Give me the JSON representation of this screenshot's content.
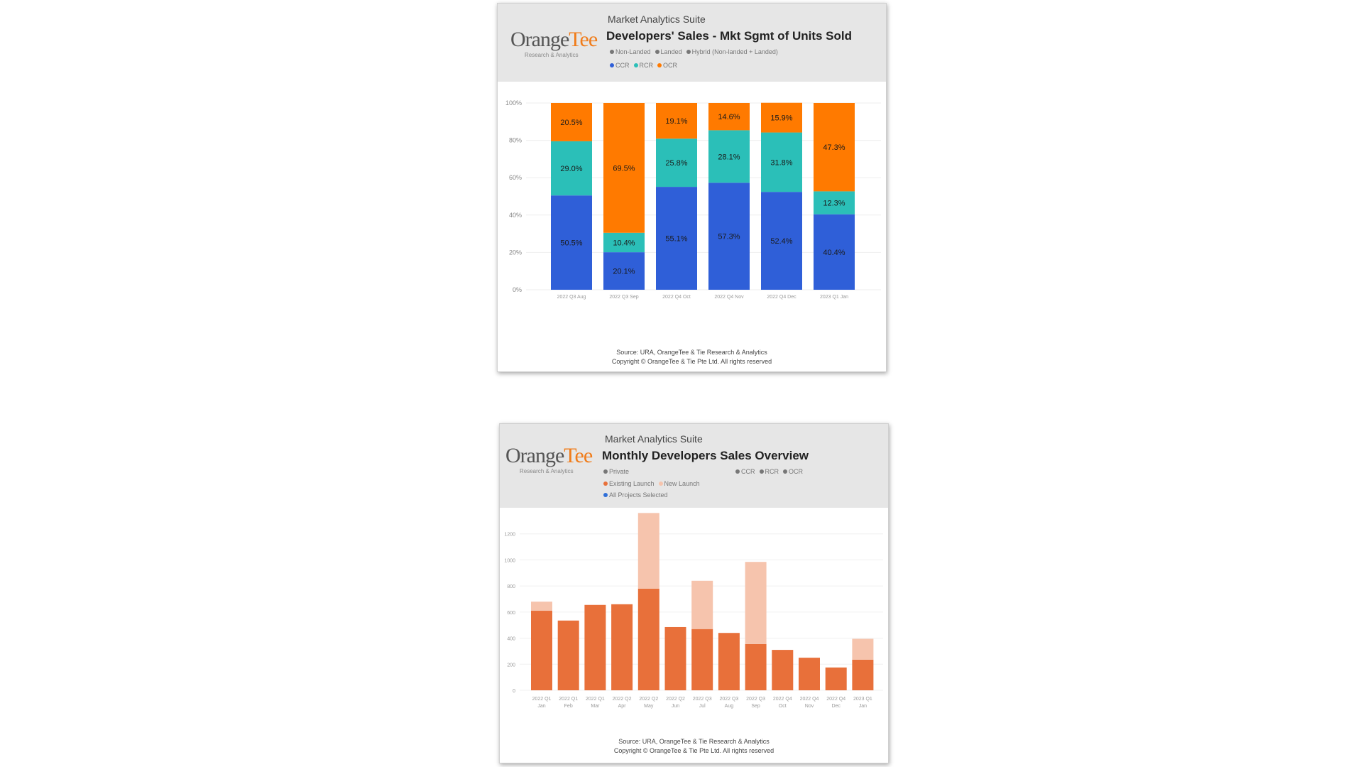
{
  "charts": [
    {
      "suite": "Market Analytics Suite",
      "title": "Developers' Sales - Mkt Sgmt of Units Sold",
      "logo": {
        "orange": "Orange",
        "tee": "Tee",
        "sub": "Research & Analytics"
      },
      "legend_rows": [
        [
          {
            "label": "Non-Landed",
            "color": "#777777"
          },
          {
            "label": "Landed",
            "color": "#777777"
          },
          {
            "label": "Hybrid (Non-landed + Landed)",
            "color": "#777777"
          }
        ],
        [
          {
            "label": "CCR",
            "color": "#2f5fd8"
          },
          {
            "label": "RCR",
            "color": "#2bbfb8"
          },
          {
            "label": "OCR",
            "color": "#ff7a00"
          }
        ]
      ],
      "footer": [
        "Source: URA, OrangeTee & Tie Research & Analytics",
        "Copyright © OrangeTee & Tie Pte Ltd. All rights reserved"
      ]
    },
    {
      "suite": "Market Analytics Suite",
      "title": "Monthly Developers Sales Overview",
      "logo": {
        "orange": "Orange",
        "tee": "Tee",
        "sub": "Research & Analytics"
      },
      "legend_rows": [
        [
          {
            "label": "Private",
            "color": "#777777"
          }
        ],
        [
          {
            "label": "Existing Launch",
            "color": "#e8703a"
          },
          {
            "label": "New Launch",
            "color": "#f6c4ad"
          }
        ],
        [
          {
            "label": "All Projects Selected",
            "color": "#2f6fd8"
          }
        ]
      ],
      "legend_right": [
        {
          "label": "CCR",
          "color": "#777777"
        },
        {
          "label": "RCR",
          "color": "#777777"
        },
        {
          "label": "OCR",
          "color": "#777777"
        }
      ],
      "footer": [
        "Source: URA, OrangeTee & Tie Research & Analytics",
        "Copyright © OrangeTee & Tie Pte Ltd. All rights reserved"
      ]
    }
  ],
  "chart_data": [
    {
      "type": "bar",
      "stacked": true,
      "categories": [
        "2022 Q3 Aug",
        "2022 Q3 Sep",
        "2022 Q4 Oct",
        "2022 Q4 Nov",
        "2022 Q4 Dec",
        "2023 Q1 Jan"
      ],
      "series": [
        {
          "name": "CCR",
          "color": "#2f5fd8",
          "values": [
            50.5,
            20.1,
            55.1,
            57.3,
            52.4,
            40.4
          ]
        },
        {
          "name": "RCR",
          "color": "#2bbfb8",
          "values": [
            29.0,
            10.4,
            25.8,
            28.1,
            31.8,
            12.3
          ]
        },
        {
          "name": "OCR",
          "color": "#ff7a00",
          "values": [
            20.5,
            69.5,
            19.1,
            14.6,
            15.9,
            47.3
          ]
        }
      ],
      "data_labels": [
        [
          "50.5%",
          "20.1%",
          "55.1%",
          "57.3%",
          "52.4%",
          "40.4%"
        ],
        [
          "29.0%",
          "10.4%",
          "25.8%",
          "28.1%",
          "31.8%",
          "12.3%"
        ],
        [
          "20.5%",
          "69.5%",
          "19.1%",
          "14.6%",
          "15.9%",
          "47.3%"
        ]
      ],
      "yticks": [
        "0%",
        "20%",
        "40%",
        "60%",
        "80%",
        "100%"
      ],
      "ylim": [
        0,
        100
      ],
      "grid": true
    },
    {
      "type": "bar",
      "stacked": true,
      "categories": [
        [
          "2022 Q1",
          "Jan"
        ],
        [
          "2022 Q1",
          "Feb"
        ],
        [
          "2022 Q1",
          "Mar"
        ],
        [
          "2022 Q2",
          "Apr"
        ],
        [
          "2022 Q2",
          "May"
        ],
        [
          "2022 Q2",
          "Jun"
        ],
        [
          "2022 Q3",
          "Jul"
        ],
        [
          "2022 Q3",
          "Aug"
        ],
        [
          "2022 Q3",
          "Sep"
        ],
        [
          "2022 Q4",
          "Oct"
        ],
        [
          "2022 Q4",
          "Nov"
        ],
        [
          "2022 Q4",
          "Dec"
        ],
        [
          "2023 Q1",
          "Jan"
        ]
      ],
      "series": [
        {
          "name": "Existing Launch",
          "color": "#e8703a",
          "values": [
            610,
            535,
            655,
            660,
            780,
            485,
            470,
            440,
            355,
            310,
            250,
            175,
            235
          ]
        },
        {
          "name": "New Launch",
          "color": "#f6c4ad",
          "values": [
            70,
            0,
            0,
            0,
            580,
            0,
            370,
            0,
            630,
            0,
            0,
            0,
            160
          ]
        }
      ],
      "yticks": [
        "0",
        "200",
        "400",
        "600",
        "800",
        "1000",
        "1200"
      ],
      "ylim": [
        0,
        1400
      ],
      "grid": true
    }
  ]
}
